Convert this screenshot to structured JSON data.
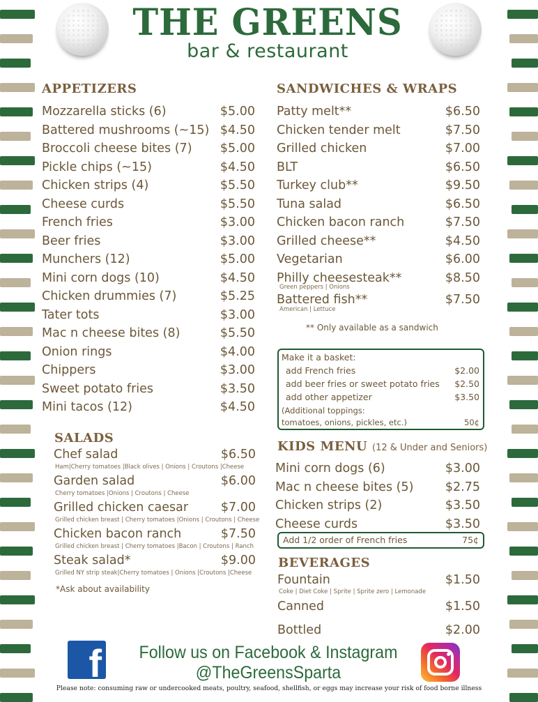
{
  "colors": {
    "brand_green": "#2c6a3b",
    "heading_brown": "#7a5f3d",
    "text": "#6b5738",
    "stripe_green": "#2c6a3b",
    "stripe_tan": "#bdb29a",
    "facebook": "#1b57a6"
  },
  "header": {
    "title": "THE GREENS",
    "subtitle": "bar & restaurant",
    "icons": [
      "golf-ball-icon",
      "golf-ball-icon"
    ]
  },
  "appetizers": {
    "heading": "APPETIZERS",
    "items": [
      {
        "name": "Mozzarella sticks (6)",
        "price": "$5.00"
      },
      {
        "name": "Battered mushrooms (~15)",
        "price": "$4.50"
      },
      {
        "name": "Broccoli cheese bites (7)",
        "price": "$5.00"
      },
      {
        "name": "Pickle chips (~15)",
        "price": "$4.50"
      },
      {
        "name": "Chicken strips (4)",
        "price": "$5.50"
      },
      {
        "name": "Cheese curds",
        "price": "$5.50"
      },
      {
        "name": "French fries",
        "price": "$3.00"
      },
      {
        "name": "Beer fries",
        "price": "$3.00"
      },
      {
        "name": "Munchers (12)",
        "price": "$5.00"
      },
      {
        "name": "Mini corn dogs (10)",
        "price": "$4.50"
      },
      {
        "name": "Chicken drummies (7)",
        "price": "$5.25"
      },
      {
        "name": "Tater tots",
        "price": "$3.00"
      },
      {
        "name": "Mac n cheese bites (8)",
        "price": "$5.50"
      },
      {
        "name": "Onion rings",
        "price": "$4.00"
      },
      {
        "name": "Chippers",
        "price": "$3.00"
      },
      {
        "name": "Sweet potato fries",
        "price": "$3.50"
      },
      {
        "name": "Mini tacos (12)",
        "price": "$4.50"
      }
    ]
  },
  "sandwiches": {
    "heading": "SANDWICHES & WRAPS",
    "items": [
      {
        "name": "Patty melt**",
        "price": "$6.50"
      },
      {
        "name": "Chicken tender melt",
        "price": "$7.50"
      },
      {
        "name": "Grilled chicken",
        "price": "$7.00"
      },
      {
        "name": "BLT",
        "price": "$6.50"
      },
      {
        "name": "Turkey club**",
        "price": "$9.50"
      },
      {
        "name": "Tuna salad",
        "price": "$6.50"
      },
      {
        "name": "Chicken bacon ranch",
        "price": "$7.50"
      },
      {
        "name": "Grilled cheese**",
        "price": "$4.50"
      },
      {
        "name": "Vegetarian",
        "price": "$6.00"
      },
      {
        "name": "Philly cheesesteak**",
        "price": "$8.50",
        "desc": "Green peppers | Onions"
      },
      {
        "name": "Battered fish**",
        "price": "$7.50",
        "desc": "American | Lettuce"
      }
    ],
    "note": "** Only available as a sandwich"
  },
  "basket": {
    "title": "Make it a basket:",
    "items": [
      {
        "name": "add French fries",
        "price": "$2.00"
      },
      {
        "name": "add beer fries or sweet potato fries",
        "price": "$2.50"
      },
      {
        "name": "add other appetizer",
        "price": "$3.50"
      }
    ],
    "toppings_line1": "(Additional toppings:",
    "toppings_line2": "tomatoes, onions, pickles, etc.)",
    "toppings_price": "50¢"
  },
  "salads": {
    "heading": "SALADS",
    "items": [
      {
        "name": "Chef salad",
        "price": "$6.50",
        "desc": "Ham|Cherry tomatoes |Black olives | Onions | Croutons |Cheese"
      },
      {
        "name": "Garden salad",
        "price": "$6.00",
        "desc": "Cherry tomatoes |Onions | Croutons | Cheese"
      },
      {
        "name": "Grilled chicken caesar",
        "price": "$7.00",
        "desc": "Grilled chicken breast | Cherry tomatoes |Onions | Croutons | Cheese"
      },
      {
        "name": "Chicken bacon ranch",
        "price": "$7.50",
        "desc": "Grilled chicken breast | Cherry tomatoes |Bacon | Croutons | Ranch"
      },
      {
        "name": "Steak salad*",
        "price": "$9.00",
        "desc": "Grilled NY strip steak|Cherry tomatoes | Onions |Croutons |Cheese"
      }
    ],
    "note": "*Ask about availability"
  },
  "kids": {
    "heading": "KIDS MENU",
    "heading_note": "(12 & Under and Seniors)",
    "items": [
      {
        "name": "Mini corn dogs (6)",
        "price": "$3.00"
      },
      {
        "name": "Mac n cheese bites (5)",
        "price": "$2.75"
      },
      {
        "name": "Chicken strips (2)",
        "price": "$3.50"
      },
      {
        "name": "Cheese curds",
        "price": "$3.50"
      }
    ],
    "addon": {
      "name": "Add 1/2 order of French fries",
      "price": "75¢"
    }
  },
  "beverages": {
    "heading": "BEVERAGES",
    "items": [
      {
        "name": "Fountain",
        "price": "$1.50",
        "desc": "Coke | Diet Coke | Sprite | Sprite zero | Lemonade"
      },
      {
        "name": "Canned",
        "price": "$1.50"
      },
      {
        "name": "Bottled",
        "price": "$2.00"
      }
    ]
  },
  "footer": {
    "follow_line1": "Follow us on Facebook & Instagram",
    "follow_line2": "@TheGreensSparta",
    "disclaimer": "Please note: consuming raw or undercooked meats, poultry, seafood, shellfish, or eggs may increase your risk of food borne illness",
    "icons": [
      "facebook-icon",
      "instagram-icon"
    ]
  }
}
